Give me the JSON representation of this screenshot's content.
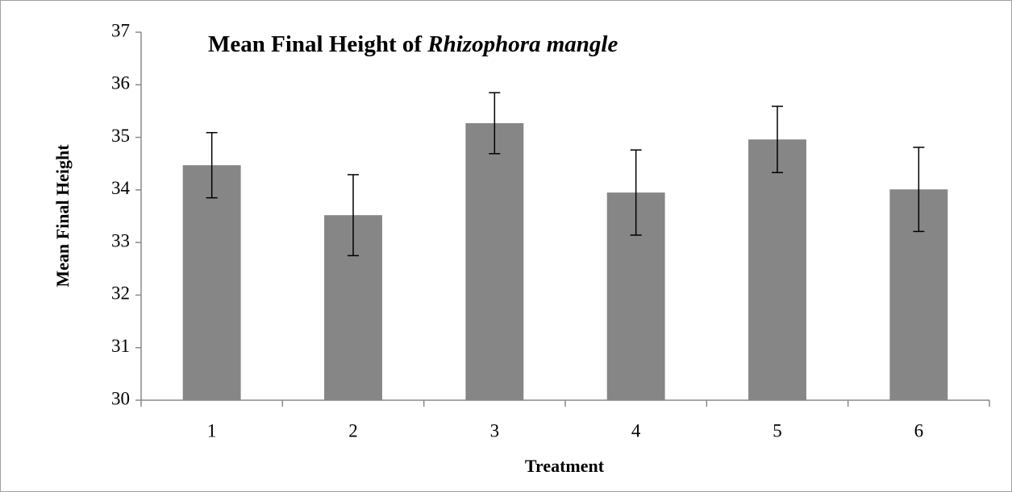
{
  "chart_data": {
    "type": "bar",
    "title": {
      "text": "Mean Final Height of",
      "italic": "Rhizophora mangle"
    },
    "x_label": "Treatment",
    "y_label": "Mean Final Height",
    "categories": [
      "1",
      "2",
      "3",
      "4",
      "5",
      "6"
    ],
    "values": [
      34.47,
      33.52,
      35.27,
      33.95,
      34.96,
      34.01
    ],
    "errors": [
      0.62,
      0.77,
      0.58,
      0.81,
      0.63,
      0.8
    ],
    "color": "#868686",
    "error_color": "#000000",
    "ylim": [
      30,
      37
    ],
    "yticks": [
      30,
      31,
      32,
      33,
      34,
      35,
      36,
      37
    ],
    "grid": false
  }
}
